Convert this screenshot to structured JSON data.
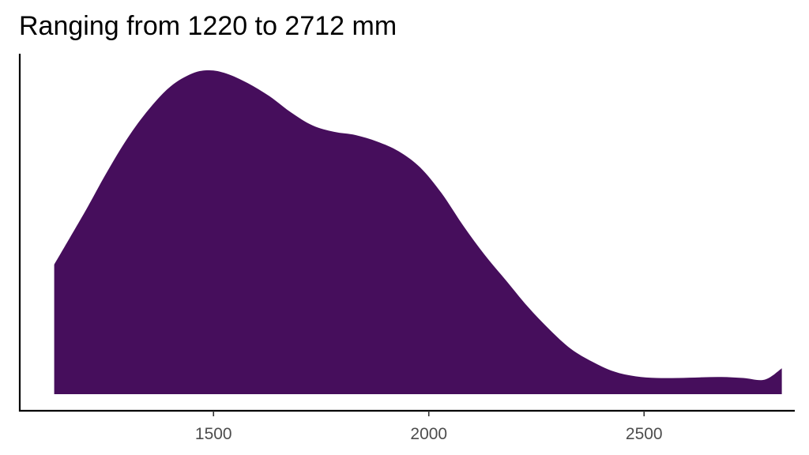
{
  "chart_data": {
    "type": "area",
    "title": "Ranging from 1220 to 2712 mm",
    "xlabel": "",
    "ylabel": "",
    "fill_color": "#460E5C",
    "xlim": [
      1050,
      2850
    ],
    "ylim": [
      0,
      1
    ],
    "xticks": [
      1500,
      2000,
      2500
    ],
    "xtick_labels": [
      "1500",
      "2000",
      "2500"
    ],
    "y_axis_visible": true,
    "y_tick_labels_visible": false,
    "grid": false,
    "legend": "none",
    "x": [
      1130,
      1200,
      1250,
      1300,
      1350,
      1400,
      1450,
      1490,
      1530,
      1580,
      1630,
      1680,
      1730,
      1780,
      1830,
      1880,
      1930,
      1980,
      2030,
      2080,
      2130,
      2180,
      2230,
      2280,
      2330,
      2380,
      2430,
      2480,
      2530,
      2580,
      2630,
      2680,
      2730,
      2780,
      2820
    ],
    "y": [
      0.4,
      0.56,
      0.68,
      0.79,
      0.88,
      0.95,
      0.99,
      1.0,
      0.99,
      0.96,
      0.92,
      0.87,
      0.83,
      0.81,
      0.8,
      0.78,
      0.75,
      0.7,
      0.62,
      0.52,
      0.43,
      0.35,
      0.27,
      0.2,
      0.14,
      0.1,
      0.07,
      0.055,
      0.05,
      0.05,
      0.052,
      0.053,
      0.05,
      0.045,
      0.08
    ]
  }
}
